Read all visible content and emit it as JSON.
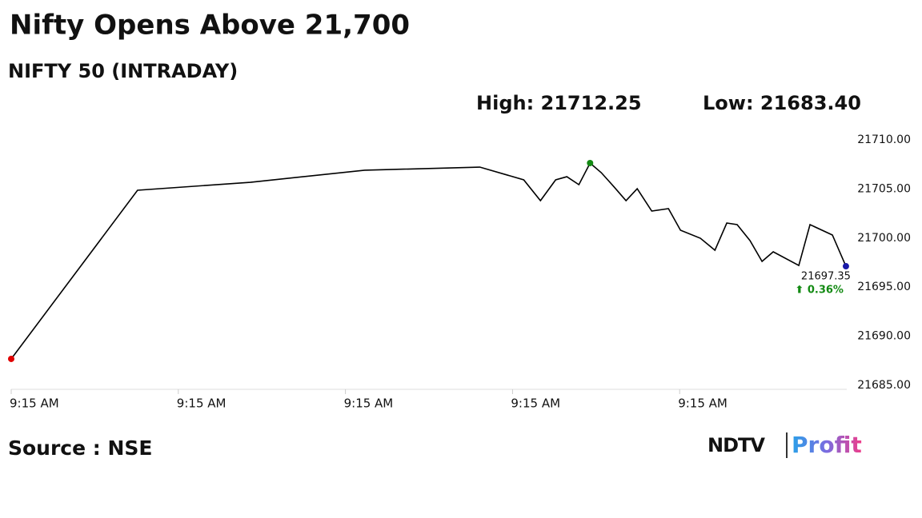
{
  "chart_data": {
    "type": "line",
    "title": "Nifty Opens Above 21,700",
    "subtitle": "NIFTY 50 (INTRADAY)",
    "high_label": "High: 21712.25",
    "low_label": "Low: 21683.40",
    "last_label": "21697.35",
    "change_label": "⬆ 0.36%",
    "source": "Source : NSE",
    "logo": {
      "brand": "NDTV",
      "product": "Profit"
    },
    "color": "#000000",
    "start_color": "#e00000",
    "peak_color": "#138a13",
    "end_color": "#1a1aa8",
    "change_color": "#138a13",
    "x": [
      0,
      0.756,
      1.431,
      2.115,
      2.804,
      3.067,
      3.167,
      3.258,
      3.325,
      3.397,
      3.464,
      3.531,
      3.608,
      3.679,
      3.746,
      3.833,
      3.933,
      4.005,
      4.124,
      4.211,
      4.282,
      4.344,
      4.421,
      4.493,
      4.56,
      4.713,
      4.78,
      4.914,
      4.995
    ],
    "values": [
      21687.69,
      21704.87,
      21705.68,
      21706.91,
      21707.23,
      21705.93,
      21703.81,
      21705.93,
      21706.25,
      21705.44,
      21707.64,
      21706.66,
      21705.2,
      21703.81,
      21705.03,
      21702.75,
      21703.0,
      21700.8,
      21699.98,
      21698.76,
      21701.53,
      21701.37,
      21699.74,
      21697.62,
      21698.6,
      21697.21,
      21701.37,
      21700.31,
      21697.13
    ],
    "xlim": [
      0,
      5
    ],
    "xticks": [
      {
        "value": 0,
        "label": "9:15 AM"
      },
      {
        "value": 1,
        "label": "9:15 AM"
      },
      {
        "value": 2,
        "label": "9:15 AM"
      },
      {
        "value": 3,
        "label": "9:15 AM"
      },
      {
        "value": 4,
        "label": "9:15 AM"
      }
    ],
    "ylim": [
      21685,
      21710
    ],
    "yticks": [
      {
        "value": 21685,
        "label": "21685.00"
      },
      {
        "value": 21690,
        "label": "21690.00"
      },
      {
        "value": 21695,
        "label": "21695.00"
      },
      {
        "value": 21700,
        "label": "21700.00"
      },
      {
        "value": 21705,
        "label": "21705.00"
      },
      {
        "value": 21710,
        "label": "21710.00"
      }
    ],
    "grid": false
  }
}
